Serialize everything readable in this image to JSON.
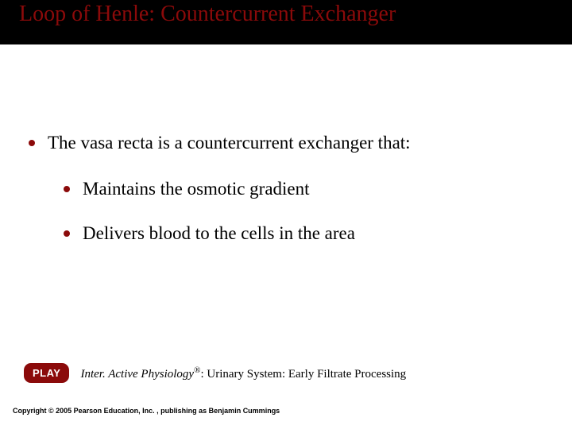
{
  "colors": {
    "title_bar_bg": "#000000",
    "accent": "#8b0a0a",
    "body_bg": "#ffffff",
    "text": "#000000",
    "button_text": "#ffffff"
  },
  "typography": {
    "title_fontsize": 28,
    "body_fontsize": 23,
    "caption_fontsize": 15,
    "copyright_fontsize": 9,
    "body_font": "Times New Roman",
    "ui_font": "Arial"
  },
  "title": "Loop of Henle: Countercurrent Exchanger",
  "bullets": {
    "main": "The vasa recta is a countercurrent exchanger that:",
    "subs": [
      "Maintains the osmotic gradient",
      "Delivers blood to the cells in the area"
    ]
  },
  "play": {
    "button_label": "PLAY",
    "caption_italic": "Inter. Active Physiology",
    "caption_reg": "®",
    "caption_rest": ": Urinary System: Early Filtrate Processing"
  },
  "copyright": "Copyright © 2005 Pearson Education, Inc. , publishing as Benjamin Cummings"
}
